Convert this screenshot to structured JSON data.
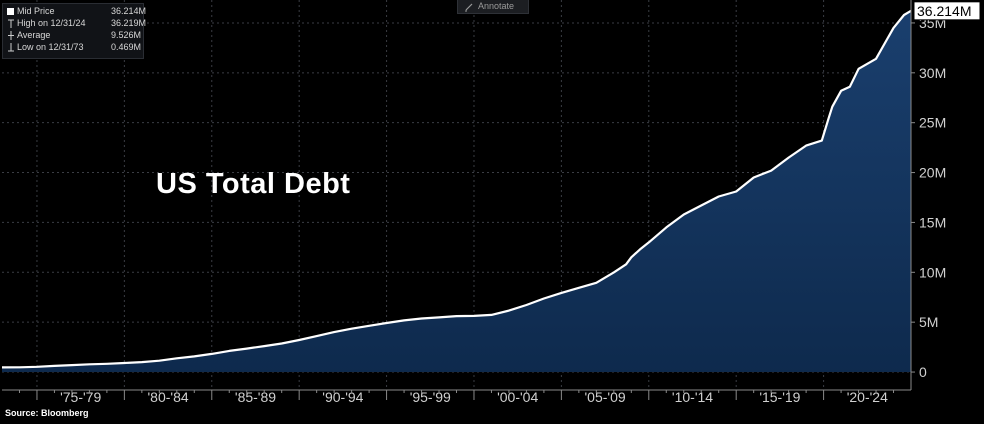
{
  "legend": {
    "rows": [
      {
        "label": "Mid Price",
        "value": "36.214M",
        "icon": "filled-square-icon"
      },
      {
        "label": "High on 12/31/24",
        "value": "36.219M",
        "icon": "high-marker-icon"
      },
      {
        "label": "Average",
        "value": "9.526M",
        "icon": "average-marker-icon"
      },
      {
        "label": "Low on 12/31/73",
        "value": "0.469M",
        "icon": "low-marker-icon"
      }
    ]
  },
  "toolbar": {
    "annotate_label": "Annotate",
    "annotate_icon": "pencil-icon"
  },
  "footer": {
    "source": "Source: Bloomberg"
  },
  "colors": {
    "background": "#000000",
    "line": "#ffffff",
    "area": "#0e2a4d",
    "grid": "#3a3d44",
    "axis_text": "#d0d0d0"
  },
  "chart_data": {
    "type": "area",
    "title": "US Total Debt",
    "xlabel": "",
    "ylabel": "",
    "x_tick_labels": [
      "'75-'79",
      "'80-'84",
      "'85-'89",
      "'90-'94",
      "'95-'99",
      "'00-'04",
      "'05-'09",
      "'10-'14",
      "'15-'19",
      "'20-'24"
    ],
    "y_tick_labels": [
      "0",
      "5M",
      "10M",
      "15M",
      "20M",
      "25M",
      "30M",
      "35M"
    ],
    "y_tick_values": [
      0,
      5,
      10,
      15,
      20,
      25,
      30,
      35
    ],
    "ylim": [
      -1.8,
      37.3
    ],
    "xlim": [
      1973.0,
      2025.0
    ],
    "grid": true,
    "last_value_label": "36.214M",
    "series": [
      {
        "name": "Mid Price",
        "x": [
          1973.0,
          1974.0,
          1975.0,
          1976.0,
          1977.0,
          1978.0,
          1979.0,
          1980.0,
          1981.0,
          1982.0,
          1983.0,
          1984.0,
          1985.0,
          1986.0,
          1987.0,
          1988.0,
          1989.0,
          1990.0,
          1991.0,
          1992.0,
          1993.0,
          1994.0,
          1995.0,
          1996.0,
          1997.0,
          1998.0,
          1999.0,
          2000.0,
          2001.0,
          2002.0,
          2003.0,
          2004.0,
          2005.0,
          2006.0,
          2007.0,
          2008.0,
          2008.7,
          2009.0,
          2009.5,
          2010.0,
          2011.0,
          2012.0,
          2013.0,
          2014.0,
          2015.0,
          2016.0,
          2017.0,
          2018.0,
          2019.0,
          2019.9,
          2020.3,
          2020.5,
          2021.0,
          2021.5,
          2022.0,
          2023.0,
          2024.0,
          2024.6,
          2025.0
        ],
        "values": [
          0.469,
          0.48,
          0.53,
          0.62,
          0.7,
          0.78,
          0.83,
          0.91,
          1.0,
          1.14,
          1.38,
          1.57,
          1.82,
          2.12,
          2.35,
          2.6,
          2.86,
          3.21,
          3.6,
          4.0,
          4.35,
          4.64,
          4.92,
          5.18,
          5.37,
          5.48,
          5.61,
          5.63,
          5.73,
          6.16,
          6.72,
          7.37,
          7.93,
          8.45,
          8.95,
          9.99,
          10.8,
          11.5,
          12.3,
          13.0,
          14.5,
          15.8,
          16.7,
          17.6,
          18.1,
          19.5,
          20.2,
          21.5,
          22.7,
          23.2,
          25.5,
          26.6,
          28.2,
          28.6,
          30.4,
          31.4,
          34.5,
          35.8,
          36.214
        ]
      }
    ]
  }
}
